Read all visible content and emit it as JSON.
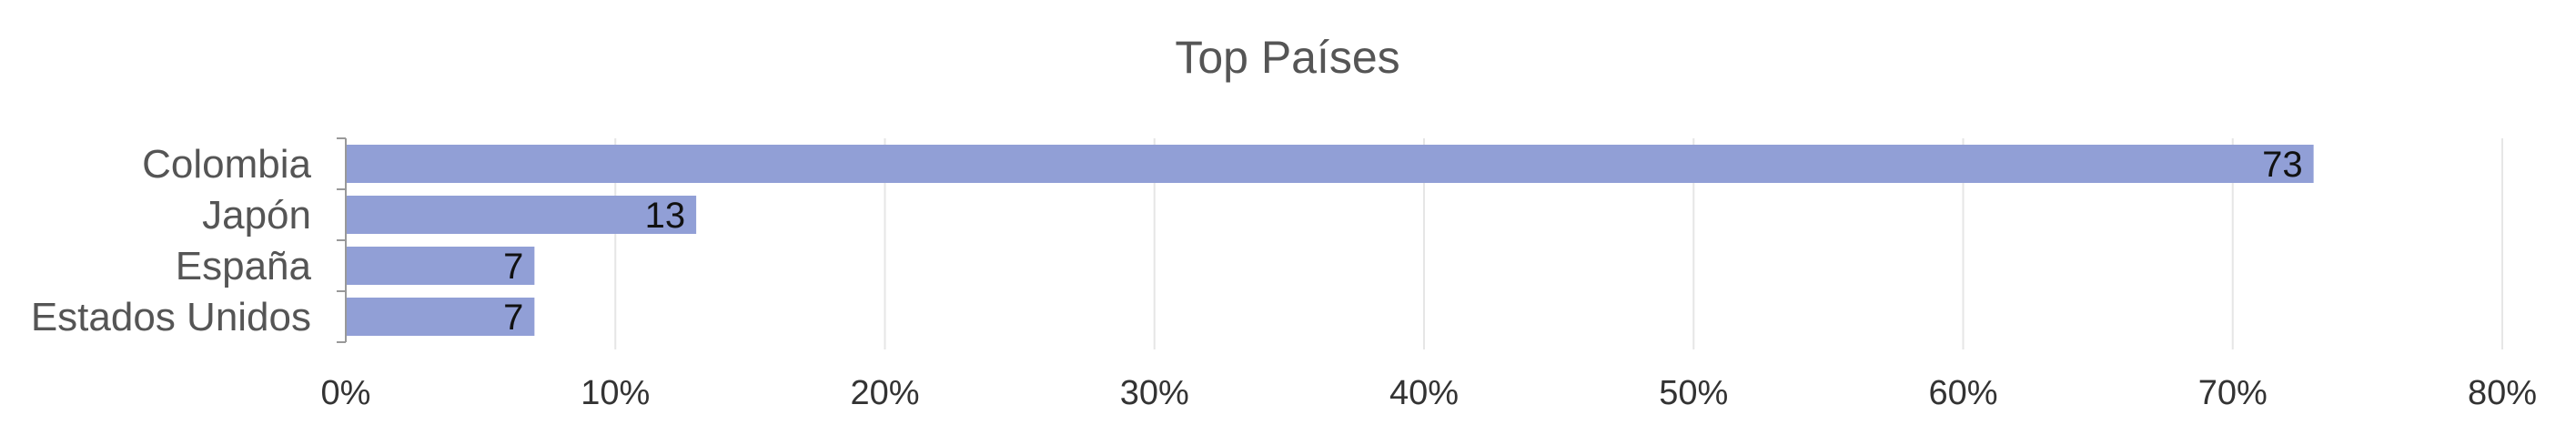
{
  "chart_data": {
    "type": "bar",
    "orientation": "horizontal",
    "title": "Top Países",
    "categories": [
      "Colombia",
      "Japón",
      "España",
      "Estados Unidos"
    ],
    "values": [
      73,
      13,
      7,
      7
    ],
    "data_labels": [
      "73",
      "13",
      "7",
      "7"
    ],
    "value_unit": "%",
    "xlim": [
      0,
      80
    ],
    "x_ticks": [
      0,
      10,
      20,
      30,
      40,
      50,
      60,
      70,
      80
    ],
    "x_tick_labels": [
      "0%",
      "10%",
      "20%",
      "30%",
      "40%",
      "50%",
      "60%",
      "70%",
      "80%"
    ],
    "xlabel": "",
    "ylabel": "",
    "grid": true,
    "legend": false,
    "bar_color": "#919fd6"
  }
}
